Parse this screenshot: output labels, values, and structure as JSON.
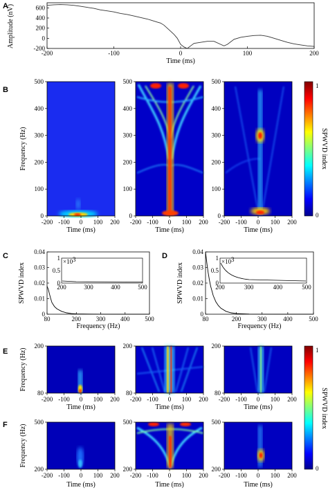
{
  "panel_letters": {
    "a": "A",
    "b": "B",
    "c": "C",
    "d": "D",
    "e": "E",
    "f": "F"
  },
  "colorbar": {
    "label": "SPWVD index",
    "max_label": "1",
    "min_label": "0"
  },
  "chart_data": [
    {
      "panel": "A",
      "type": "line",
      "xlabel": "Time (ms)",
      "ylabel": "Amplitude (nV)",
      "xlim": [
        -200,
        200
      ],
      "ylim": [
        -200,
        700
      ],
      "xticks": [
        "-200",
        "-100",
        "0",
        "100",
        "200"
      ],
      "yticks": [
        "600",
        "400",
        "200",
        "0",
        "-200"
      ],
      "series": [
        {
          "x": [
            -200,
            -190,
            -180,
            -170,
            -160,
            -150,
            -140,
            -130,
            -120,
            -110,
            -100,
            -90,
            -80,
            -70,
            -60,
            -50,
            -45,
            -40,
            -35,
            -30,
            -25,
            -20,
            -15,
            -10,
            -5,
            0,
            5,
            10,
            15,
            20,
            30,
            40,
            50,
            60,
            65,
            70,
            80,
            90,
            100,
            110,
            120,
            130,
            140,
            150,
            160,
            170,
            180,
            190,
            200
          ],
          "y": [
            650,
            660,
            665,
            660,
            650,
            630,
            610,
            590,
            560,
            540,
            520,
            490,
            470,
            440,
            410,
            380,
            360,
            340,
            320,
            300,
            260,
            200,
            140,
            80,
            0,
            -120,
            -170,
            -200,
            -150,
            -100,
            -80,
            -60,
            -60,
            -120,
            -150,
            -120,
            -20,
            20,
            40,
            55,
            60,
            40,
            0,
            -40,
            -80,
            -110,
            -130,
            -150,
            -160
          ]
        }
      ]
    },
    {
      "panel": "B",
      "type": "heatmap",
      "xlabel": "Time (ms)",
      "ylabel": "Frequency (Hz)",
      "xlim": [
        -200,
        200
      ],
      "ylim": [
        0,
        500
      ],
      "xticks": [
        "-200",
        "-100",
        "0",
        "100",
        "200"
      ],
      "yticks": [
        "500",
        "400",
        "300",
        "200",
        "100",
        "0"
      ],
      "subplots": 3
    },
    {
      "panel": "C",
      "type": "line",
      "xlabel": "Frequency (Hz)",
      "ylabel": "SPWVD index",
      "xlim": [
        80,
        500
      ],
      "ylim": [
        0,
        0.04
      ],
      "xticks": [
        "80",
        "200",
        "300",
        "400",
        "500"
      ],
      "yticks": [
        "0.04",
        "0.03",
        "0.02",
        "0.01",
        "0"
      ],
      "series": [
        {
          "x": [
            80,
            85,
            90,
            95,
            100,
            110,
            120,
            140,
            160,
            180,
            200,
            250,
            300,
            400,
            500
          ],
          "y": [
            0.018,
            0.016,
            0.013,
            0.01,
            0.0075,
            0.005,
            0.0035,
            0.0018,
            0.0009,
            0.0004,
            0.0002,
            0.0001,
            5e-05,
            2e-05,
            1e-05
          ]
        }
      ],
      "inset": {
        "multiplier": "×10",
        "exponent": "3",
        "xticks": [
          "200",
          "300",
          "400",
          "500"
        ],
        "yticks": [
          "1",
          "0.5",
          "0"
        ]
      }
    },
    {
      "panel": "D",
      "type": "line",
      "xlabel": "Frequency (Hz)",
      "ylabel": "SPWVD index",
      "xlim": [
        80,
        500
      ],
      "ylim": [
        0,
        0.04
      ],
      "xticks": [
        "80",
        "200",
        "300",
        "400",
        "500"
      ],
      "yticks": [
        "0.04",
        "0.03",
        "0.02",
        "0.01",
        "0"
      ],
      "series": [
        {
          "x": [
            80,
            85,
            90,
            95,
            100,
            110,
            120,
            130,
            140,
            160,
            180,
            200,
            250,
            300,
            400,
            500
          ],
          "y": [
            0.04,
            0.033,
            0.027,
            0.022,
            0.018,
            0.012,
            0.008,
            0.0055,
            0.0038,
            0.0018,
            0.0009,
            0.0004,
            0.0001,
            5e-05,
            2e-05,
            1e-05
          ]
        }
      ],
      "inset": {
        "multiplier": "×10",
        "exponent": "3",
        "xticks": [
          "200",
          "300",
          "400",
          "500"
        ],
        "yticks": [
          "1",
          "0.5",
          "0"
        ]
      }
    },
    {
      "panel": "E",
      "type": "heatmap",
      "xlabel": "Time (ms)",
      "ylabel": "Frequency (Hz)",
      "xlim": [
        -200,
        200
      ],
      "ylim": [
        80,
        200
      ],
      "xticks": [
        "-200",
        "-100",
        "0",
        "100",
        "200"
      ],
      "yticks": [
        "200",
        "80"
      ],
      "subplots": 3
    },
    {
      "panel": "F",
      "type": "heatmap",
      "xlabel": "Time (ms)",
      "ylabel": "Frequency (Hz)",
      "xlim": [
        -200,
        200
      ],
      "ylim": [
        200,
        500
      ],
      "xticks": [
        "-200",
        "-100",
        "0",
        "100",
        "200"
      ],
      "yticks": [
        "500",
        "200"
      ],
      "subplots": 3
    }
  ]
}
